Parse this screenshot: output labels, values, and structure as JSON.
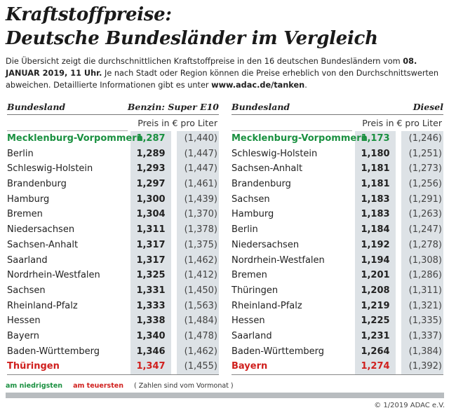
{
  "title": {
    "line1": "Kraftstoffpreise:",
    "line2": "Deutsche Bundesländer im Vergleich"
  },
  "intro": {
    "text1": "Die Übersicht zeigt die durchschnittlichen Kraftstoffpreise in den 16 deutschen Bundesländern vom ",
    "date": "08. JANUAR 2019, 11 Uhr.",
    "text2": " Je nach Stadt oder Region können die Preise erheblich von den Durchschnittswerten abweichen. Detaillierte Informationen gibt es unter ",
    "link": "www.adac.de/tanken",
    "text3": "."
  },
  "benzin": {
    "col_state": "Bundesland",
    "col_fuel": "Benzin:  Super E10",
    "unit": "Preis in € pro Liter",
    "rows": [
      {
        "state": "Mecklenburg-Vorpommern",
        "price": "1,287",
        "prev": "(1,440)",
        "mark": "low"
      },
      {
        "state": "Berlin",
        "price": "1,289",
        "prev": "(1,447)",
        "mark": ""
      },
      {
        "state": "Schleswig-Holstein",
        "price": "1,293",
        "prev": "(1,447)",
        "mark": ""
      },
      {
        "state": "Brandenburg",
        "price": "1,297",
        "prev": "(1,461)",
        "mark": ""
      },
      {
        "state": "Hamburg",
        "price": "1,300",
        "prev": "(1,439)",
        "mark": ""
      },
      {
        "state": "Bremen",
        "price": "1,304",
        "prev": "(1,370)",
        "mark": ""
      },
      {
        "state": "Niedersachsen",
        "price": "1,311",
        "prev": "(1,378)",
        "mark": ""
      },
      {
        "state": "Sachsen-Anhalt",
        "price": "1,317",
        "prev": "(1,375)",
        "mark": ""
      },
      {
        "state": "Saarland",
        "price": "1,317",
        "prev": "(1,462)",
        "mark": ""
      },
      {
        "state": "Nordrhein-Westfalen",
        "price": "1,325",
        "prev": "(1,412)",
        "mark": ""
      },
      {
        "state": "Sachsen",
        "price": "1,331",
        "prev": "(1,450)",
        "mark": ""
      },
      {
        "state": "Rheinland-Pfalz",
        "price": "1,333",
        "prev": "(1,563)",
        "mark": ""
      },
      {
        "state": "Hessen",
        "price": "1,338",
        "prev": "(1,484)",
        "mark": ""
      },
      {
        "state": "Bayern",
        "price": "1,340",
        "prev": "(1,478)",
        "mark": ""
      },
      {
        "state": "Baden-Württemberg",
        "price": "1,346",
        "prev": "(1,462)",
        "mark": ""
      },
      {
        "state": "Thüringen",
        "price": "1,347",
        "prev": "(1,455)",
        "mark": "high"
      }
    ]
  },
  "diesel": {
    "col_state": "Bundesland",
    "col_fuel": "Diesel",
    "unit": "Preis in € pro Liter",
    "rows": [
      {
        "state": "Mecklenburg-Vorpommern",
        "price": "1,173",
        "prev": "(1,246)",
        "mark": "low"
      },
      {
        "state": "Schleswig-Holstein",
        "price": "1,180",
        "prev": "(1,251)",
        "mark": ""
      },
      {
        "state": "Sachsen-Anhalt",
        "price": "1,181",
        "prev": "(1,273)",
        "mark": ""
      },
      {
        "state": "Brandenburg",
        "price": "1,181",
        "prev": "(1,256)",
        "mark": ""
      },
      {
        "state": "Sachsen",
        "price": "1,183",
        "prev": "(1,291)",
        "mark": ""
      },
      {
        "state": "Hamburg",
        "price": "1,183",
        "prev": "(1,263)",
        "mark": ""
      },
      {
        "state": "Berlin",
        "price": "1,184",
        "prev": "(1,247)",
        "mark": ""
      },
      {
        "state": "Niedersachsen",
        "price": "1,192",
        "prev": "(1,278)",
        "mark": ""
      },
      {
        "state": "Nordrhein-Westfalen",
        "price": "1,194",
        "prev": "(1,308)",
        "mark": ""
      },
      {
        "state": "Bremen",
        "price": "1,201",
        "prev": "(1,286)",
        "mark": ""
      },
      {
        "state": "Thüringen",
        "price": "1,208",
        "prev": "(1,311)",
        "mark": ""
      },
      {
        "state": "Rheinland-Pfalz",
        "price": "1,219",
        "prev": "(1,321)",
        "mark": ""
      },
      {
        "state": "Hessen",
        "price": "1,225",
        "prev": "(1,335)",
        "mark": ""
      },
      {
        "state": "Saarland",
        "price": "1,231",
        "prev": "(1,337)",
        "mark": ""
      },
      {
        "state": "Baden-Württemberg",
        "price": "1,264",
        "prev": "(1,384)",
        "mark": ""
      },
      {
        "state": "Bayern",
        "price": "1,274",
        "prev": "(1,392)",
        "mark": "high"
      }
    ]
  },
  "legend": {
    "low": "am niedrigsten",
    "high": "am teuersten",
    "note": "( Zahlen sind vom Vormonat )"
  },
  "copyright": "© 1/2019 ADAC e.V.",
  "colors": {
    "low": "#1a9040",
    "high": "#d0201e",
    "column_bg": "#dde2e6"
  }
}
